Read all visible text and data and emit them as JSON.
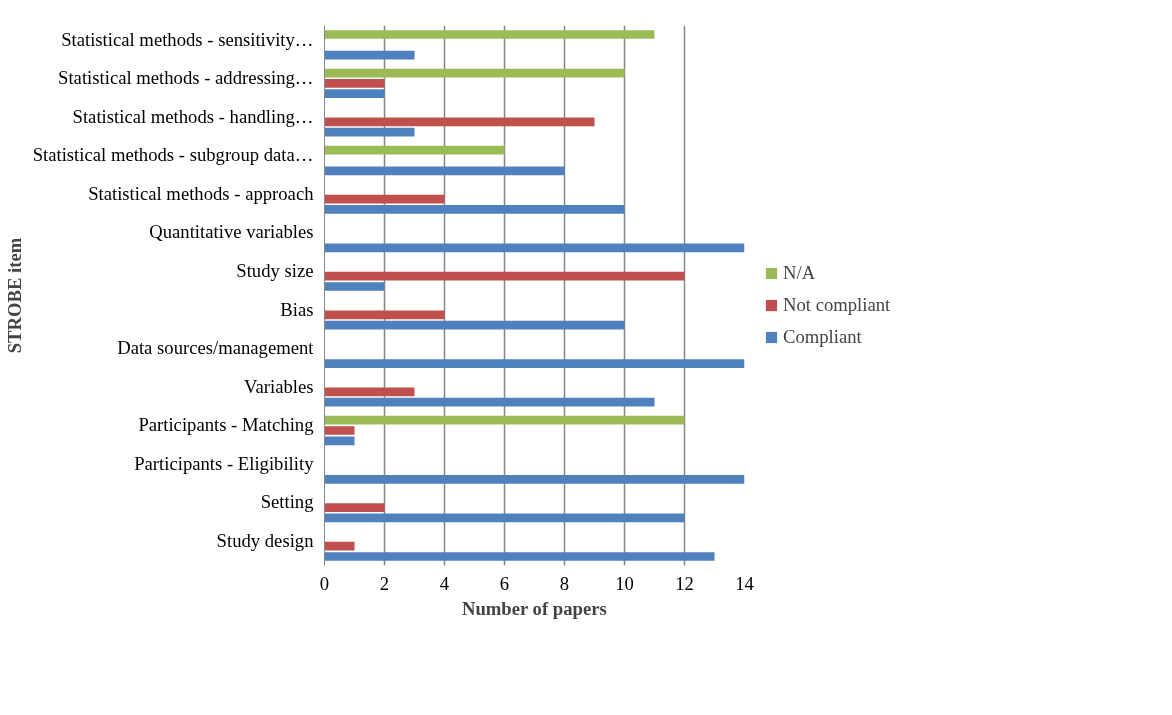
{
  "chart_data": {
    "type": "bar",
    "orientation": "horizontal",
    "xlabel": "Number of papers",
    "ylabel": "STROBE item",
    "categories": [
      "Statistical methods - sensitivity…",
      "Statistical methods - addressing…",
      "Statistical methods - handling…",
      "Statistical methods - subgroup data…",
      "Statistical methods - approach",
      "Quantitative variables",
      "Study size",
      "Bias",
      "Data sources/management",
      "Variables",
      "Participants - Matching",
      "Participants - Eligibility",
      "Setting",
      "Study design"
    ],
    "series": [
      {
        "name": "N/A",
        "color": "#9bbb59",
        "values": [
          11,
          10,
          0,
          6,
          0,
          0,
          0,
          0,
          0,
          0,
          12,
          0,
          0,
          0
        ]
      },
      {
        "name": "Not compliant",
        "color": "#c0504d",
        "values": [
          0,
          2,
          9,
          0,
          4,
          0,
          12,
          4,
          0,
          3,
          1,
          0,
          2,
          1
        ]
      },
      {
        "name": "Compliant",
        "color": "#4f81bd",
        "values": [
          3,
          2,
          3,
          8,
          10,
          14,
          2,
          10,
          14,
          11,
          1,
          14,
          12,
          13
        ]
      }
    ],
    "xlim": [
      0,
      14
    ],
    "xticks": [
      0,
      2,
      4,
      6,
      8,
      10,
      12,
      14
    ],
    "grid": "x",
    "legend": "right"
  }
}
